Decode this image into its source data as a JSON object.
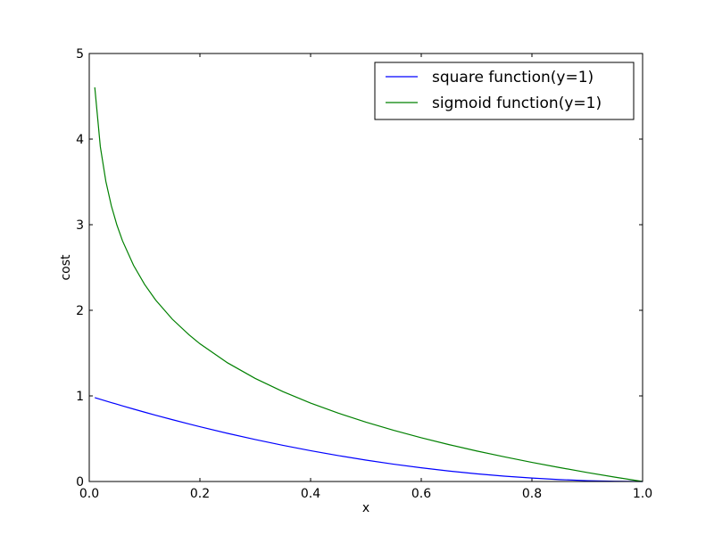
{
  "chart_data": {
    "type": "line",
    "title": "",
    "xlabel": "x",
    "ylabel": "cost",
    "xlim": [
      0.0,
      1.0
    ],
    "ylim": [
      0,
      5
    ],
    "x_ticks": [
      "0.0",
      "0.2",
      "0.4",
      "0.6",
      "0.8",
      "1.0"
    ],
    "y_ticks": [
      "0",
      "1",
      "2",
      "3",
      "4",
      "5"
    ],
    "grid": false,
    "legend_position": "top-right",
    "x": [
      0.01,
      0.02,
      0.03,
      0.04,
      0.05,
      0.06,
      0.08,
      0.1,
      0.12,
      0.15,
      0.18,
      0.2,
      0.25,
      0.3,
      0.35,
      0.4,
      0.45,
      0.5,
      0.55,
      0.6,
      0.65,
      0.7,
      0.75,
      0.8,
      0.85,
      0.9,
      0.95,
      1.0
    ],
    "series": [
      {
        "name": "square function(y=1)",
        "color": "#0000ff",
        "values": [
          0.9801,
          0.9604,
          0.9409,
          0.9216,
          0.9025,
          0.8836,
          0.8464,
          0.81,
          0.7744,
          0.7225,
          0.6724,
          0.64,
          0.5625,
          0.49,
          0.4225,
          0.36,
          0.3025,
          0.25,
          0.2025,
          0.16,
          0.1225,
          0.09,
          0.0625,
          0.04,
          0.0225,
          0.01,
          0.0025,
          0.0
        ]
      },
      {
        "name": "sigmoid function(y=1)",
        "color": "#008000",
        "values": [
          4.605,
          3.912,
          3.507,
          3.219,
          2.996,
          2.813,
          2.526,
          2.303,
          2.12,
          1.897,
          1.715,
          1.609,
          1.386,
          1.204,
          1.05,
          0.916,
          0.799,
          0.693,
          0.598,
          0.511,
          0.431,
          0.357,
          0.288,
          0.223,
          0.163,
          0.105,
          0.051,
          0.0
        ]
      }
    ]
  }
}
